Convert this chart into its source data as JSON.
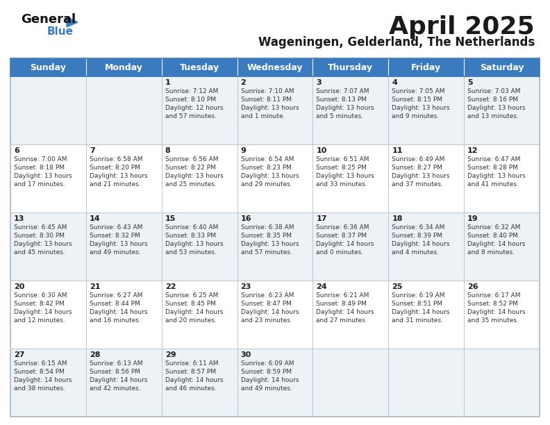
{
  "title": "April 2025",
  "subtitle": "Wageningen, Gelderland, The Netherlands",
  "header_color": "#3a7bbf",
  "header_text_color": "#ffffff",
  "day_headers": [
    "Sunday",
    "Monday",
    "Tuesday",
    "Wednesday",
    "Thursday",
    "Friday",
    "Saturday"
  ],
  "calendar": [
    [
      {
        "day": "",
        "info": ""
      },
      {
        "day": "",
        "info": ""
      },
      {
        "day": "1",
        "info": "Sunrise: 7:12 AM\nSunset: 8:10 PM\nDaylight: 12 hours\nand 57 minutes."
      },
      {
        "day": "2",
        "info": "Sunrise: 7:10 AM\nSunset: 8:11 PM\nDaylight: 13 hours\nand 1 minute."
      },
      {
        "day": "3",
        "info": "Sunrise: 7:07 AM\nSunset: 8:13 PM\nDaylight: 13 hours\nand 5 minutes."
      },
      {
        "day": "4",
        "info": "Sunrise: 7:05 AM\nSunset: 8:15 PM\nDaylight: 13 hours\nand 9 minutes."
      },
      {
        "day": "5",
        "info": "Sunrise: 7:03 AM\nSunset: 8:16 PM\nDaylight: 13 hours\nand 13 minutes."
      }
    ],
    [
      {
        "day": "6",
        "info": "Sunrise: 7:00 AM\nSunset: 8:18 PM\nDaylight: 13 hours\nand 17 minutes."
      },
      {
        "day": "7",
        "info": "Sunrise: 6:58 AM\nSunset: 8:20 PM\nDaylight: 13 hours\nand 21 minutes."
      },
      {
        "day": "8",
        "info": "Sunrise: 6:56 AM\nSunset: 8:22 PM\nDaylight: 13 hours\nand 25 minutes."
      },
      {
        "day": "9",
        "info": "Sunrise: 6:54 AM\nSunset: 8:23 PM\nDaylight: 13 hours\nand 29 minutes."
      },
      {
        "day": "10",
        "info": "Sunrise: 6:51 AM\nSunset: 8:25 PM\nDaylight: 13 hours\nand 33 minutes."
      },
      {
        "day": "11",
        "info": "Sunrise: 6:49 AM\nSunset: 8:27 PM\nDaylight: 13 hours\nand 37 minutes."
      },
      {
        "day": "12",
        "info": "Sunrise: 6:47 AM\nSunset: 8:28 PM\nDaylight: 13 hours\nand 41 minutes."
      }
    ],
    [
      {
        "day": "13",
        "info": "Sunrise: 6:45 AM\nSunset: 8:30 PM\nDaylight: 13 hours\nand 45 minutes."
      },
      {
        "day": "14",
        "info": "Sunrise: 6:43 AM\nSunset: 8:32 PM\nDaylight: 13 hours\nand 49 minutes."
      },
      {
        "day": "15",
        "info": "Sunrise: 6:40 AM\nSunset: 8:33 PM\nDaylight: 13 hours\nand 53 minutes."
      },
      {
        "day": "16",
        "info": "Sunrise: 6:38 AM\nSunset: 8:35 PM\nDaylight: 13 hours\nand 57 minutes."
      },
      {
        "day": "17",
        "info": "Sunrise: 6:36 AM\nSunset: 8:37 PM\nDaylight: 14 hours\nand 0 minutes."
      },
      {
        "day": "18",
        "info": "Sunrise: 6:34 AM\nSunset: 8:39 PM\nDaylight: 14 hours\nand 4 minutes."
      },
      {
        "day": "19",
        "info": "Sunrise: 6:32 AM\nSunset: 8:40 PM\nDaylight: 14 hours\nand 8 minutes."
      }
    ],
    [
      {
        "day": "20",
        "info": "Sunrise: 6:30 AM\nSunset: 8:42 PM\nDaylight: 14 hours\nand 12 minutes."
      },
      {
        "day": "21",
        "info": "Sunrise: 6:27 AM\nSunset: 8:44 PM\nDaylight: 14 hours\nand 16 minutes."
      },
      {
        "day": "22",
        "info": "Sunrise: 6:25 AM\nSunset: 8:45 PM\nDaylight: 14 hours\nand 20 minutes."
      },
      {
        "day": "23",
        "info": "Sunrise: 6:23 AM\nSunset: 8:47 PM\nDaylight: 14 hours\nand 23 minutes."
      },
      {
        "day": "24",
        "info": "Sunrise: 6:21 AM\nSunset: 8:49 PM\nDaylight: 14 hours\nand 27 minutes."
      },
      {
        "day": "25",
        "info": "Sunrise: 6:19 AM\nSunset: 8:51 PM\nDaylight: 14 hours\nand 31 minutes."
      },
      {
        "day": "26",
        "info": "Sunrise: 6:17 AM\nSunset: 8:52 PM\nDaylight: 14 hours\nand 35 minutes."
      }
    ],
    [
      {
        "day": "27",
        "info": "Sunrise: 6:15 AM\nSunset: 8:54 PM\nDaylight: 14 hours\nand 38 minutes."
      },
      {
        "day": "28",
        "info": "Sunrise: 6:13 AM\nSunset: 8:56 PM\nDaylight: 14 hours\nand 42 minutes."
      },
      {
        "day": "29",
        "info": "Sunrise: 6:11 AM\nSunset: 8:57 PM\nDaylight: 14 hours\nand 46 minutes."
      },
      {
        "day": "30",
        "info": "Sunrise: 6:09 AM\nSunset: 8:59 PM\nDaylight: 14 hours\nand 49 minutes."
      },
      {
        "day": "",
        "info": ""
      },
      {
        "day": "",
        "info": ""
      },
      {
        "day": "",
        "info": ""
      }
    ]
  ],
  "text_color": "#333333",
  "day_num_color": "#1a1a1a",
  "logo_general_color": "#111111",
  "logo_blue_color": "#3a7bbf",
  "border_color": "#b0b8c8",
  "row_alt_color": "#edf2f7",
  "title_fontsize": 26,
  "subtitle_fontsize": 12,
  "header_fontsize": 9,
  "day_num_fontsize": 8,
  "info_fontsize": 6.5
}
